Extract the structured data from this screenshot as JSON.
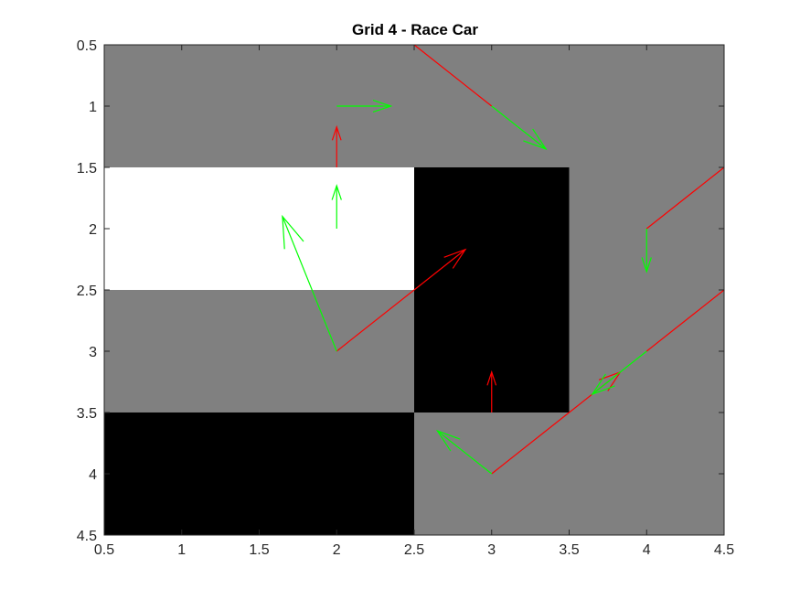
{
  "chart_data": {
    "type": "heatmap",
    "title": "Grid 4 - Race Car",
    "xlabel": "",
    "ylabel": "",
    "xlim": [
      0.5,
      4.5
    ],
    "ylim": [
      0.5,
      4.5
    ],
    "y_direction": "reversed",
    "grid": false,
    "xticks": [
      0.5,
      1,
      1.5,
      2,
      2.5,
      3,
      3.5,
      4,
      4.5
    ],
    "xtick_labels": [
      "0.5",
      "1",
      "1.5",
      "2",
      "2.5",
      "3",
      "3.5",
      "4",
      "4.5"
    ],
    "yticks": [
      0.5,
      1,
      1.5,
      2,
      2.5,
      3,
      3.5,
      4,
      4.5
    ],
    "ytick_labels": [
      "0.5",
      "1",
      "1.5",
      "2",
      "2.5",
      "3",
      "3.5",
      "4",
      "4.5"
    ],
    "colors": {
      "gray": "#808080",
      "white": "#ffffff",
      "black": "#000000",
      "red": "#ff0000",
      "green": "#00ff00"
    },
    "grid_cells": [
      [
        "gray",
        "gray",
        "gray",
        "gray"
      ],
      [
        "white",
        "white",
        "black",
        "gray"
      ],
      [
        "gray",
        "gray",
        "black",
        "gray"
      ],
      [
        "black",
        "black",
        "gray",
        "gray"
      ]
    ],
    "red_lines": [
      {
        "x": [
          2.5,
          3
        ],
        "y": [
          0.5,
          1
        ]
      },
      {
        "x": [
          4,
          4.5
        ],
        "y": [
          2,
          1.5
        ]
      },
      {
        "x": [
          2,
          2.5
        ],
        "y": [
          3,
          2.5
        ]
      },
      {
        "x": [
          3,
          3.5
        ],
        "y": [
          4,
          3.5
        ]
      },
      {
        "x": [
          4,
          4.5
        ],
        "y": [
          3,
          2.5
        ]
      }
    ],
    "red_arrows": [
      {
        "x": 2,
        "y": 1.5,
        "u": 0,
        "v": -0.33
      },
      {
        "x": 2.5,
        "y": 2.5,
        "u": 0.33,
        "v": -0.33
      },
      {
        "x": 3,
        "y": 3.5,
        "u": 0,
        "v": -0.33
      },
      {
        "x": 3.5,
        "y": 3.5,
        "u": 0.33,
        "v": -0.33
      }
    ],
    "green_arrows": [
      {
        "x": 2,
        "y": 1,
        "u": 0.35,
        "v": 0
      },
      {
        "x": 3,
        "y": 1,
        "u": 0.35,
        "v": 0.35
      },
      {
        "x": 2,
        "y": 2,
        "u": 0,
        "v": -0.35
      },
      {
        "x": 4,
        "y": 2,
        "u": 0,
        "v": 0.35
      },
      {
        "x": 2,
        "y": 3,
        "u": -0.35,
        "v": -1.1
      },
      {
        "x": 3,
        "y": 4,
        "u": -0.35,
        "v": -0.35
      },
      {
        "x": 4,
        "y": 3,
        "u": -0.35,
        "v": 0.35
      }
    ]
  }
}
